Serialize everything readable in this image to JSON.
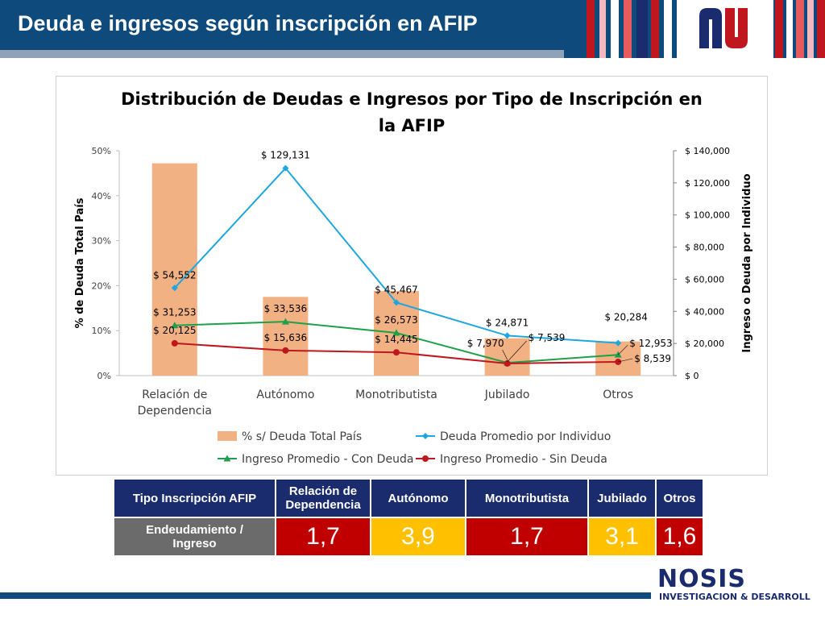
{
  "header": {
    "title": "Deuda e ingresos según inscripción en AFIP"
  },
  "chart_data": {
    "type": "bar",
    "title": "Distribución de Deudas e Ingresos por Tipo de Inscripción en la AFIP",
    "title_lines": [
      "Distribución de Deudas e Ingresos por Tipo de Inscripción en",
      "la AFIP"
    ],
    "categories": [
      [
        "Relación de",
        "Dependencia"
      ],
      [
        "Autónomo"
      ],
      [
        "Monotributista"
      ],
      [
        "Jubilado"
      ],
      [
        "Otros"
      ]
    ],
    "ylabel": "% de Deuda Total País",
    "y2label": "Ingreso o Deuda por Individuo",
    "ylim": [
      0,
      50
    ],
    "y2lim": [
      0,
      140000
    ],
    "y_ticks": [
      "0%",
      "10%",
      "20%",
      "30%",
      "40%",
      "50%"
    ],
    "y2_ticks": [
      "$ 0",
      "$ 20,000",
      "$ 40,000",
      "$ 60,000",
      "$ 80,000",
      "$ 100,000",
      "$ 120,000",
      "$ 140,000"
    ],
    "series": [
      {
        "name": "% s/ Deuda Total País",
        "kind": "bar",
        "axis": "left",
        "color": "#f2b183",
        "values": [
          47.2,
          17.5,
          18.8,
          8.3,
          7.6
        ]
      },
      {
        "name": "Deuda Promedio por Individuo",
        "kind": "line",
        "axis": "right",
        "color": "#1ea7df",
        "marker": "diamond",
        "values": [
          54552,
          129131,
          45467,
          24871,
          20284
        ],
        "labels": [
          "$ 54,552",
          "$ 129,131",
          "$ 45,467",
          "$ 24,871",
          "$ 20,284"
        ]
      },
      {
        "name": "Ingreso Promedio - Con Deuda",
        "kind": "line",
        "axis": "right",
        "color": "#1ea04a",
        "marker": "triangle",
        "values": [
          31253,
          33536,
          26573,
          7970,
          12953
        ],
        "labels": [
          "$ 31,253",
          "$ 33,536",
          "$ 26,573",
          "$ 7,970",
          "$ 12,953"
        ]
      },
      {
        "name": "Ingreso Promedio - Sin Deuda",
        "kind": "line",
        "axis": "right",
        "color": "#c0171e",
        "marker": "circle",
        "values": [
          20125,
          15636,
          14445,
          7539,
          8539
        ],
        "labels": [
          "$ 20,125",
          "$ 15,636",
          "$ 14,445",
          "$ 7,539",
          "$ 8,539"
        ]
      }
    ],
    "legend_position": "bottom"
  },
  "table": {
    "header_label": "Tipo Inscripción AFIP",
    "columns": [
      [
        "Relación de",
        "Dependencia"
      ],
      [
        "Autónomo"
      ],
      [
        "Monotributista"
      ],
      [
        "Jubilado"
      ],
      [
        "Otros"
      ]
    ],
    "row_label": [
      "Endeudamiento /",
      "Ingreso"
    ],
    "values": [
      "1,7",
      "3,9",
      "1,7",
      "3,1",
      "1,6"
    ],
    "value_colors": [
      "red",
      "yellow",
      "red",
      "yellow",
      "red"
    ]
  },
  "footer": {
    "brand": "NOSIS",
    "subtitle": "INVESTIGACION & DESARROLLO"
  },
  "colors": {
    "header": "#0f4a7c",
    "table_header": "#1a2c6e",
    "red": "#c00000",
    "yellow": "#ffc000",
    "gray": "#6b6b6b"
  }
}
